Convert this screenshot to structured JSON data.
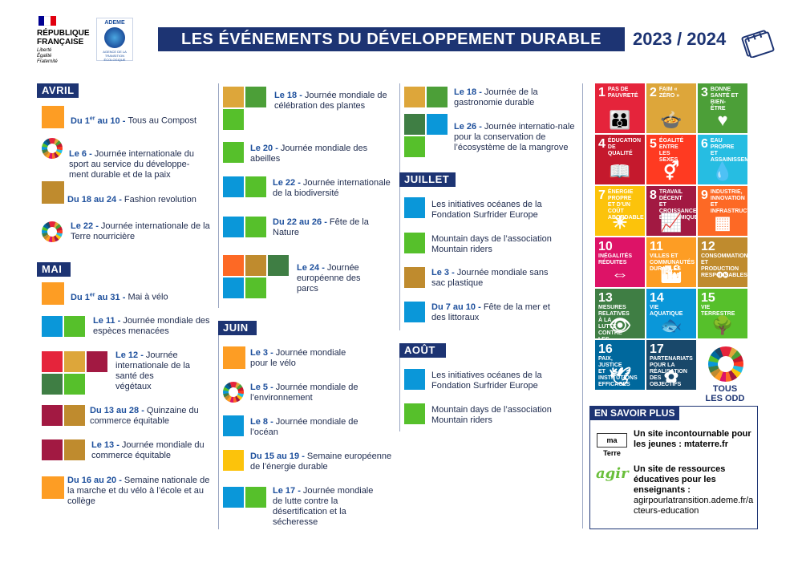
{
  "header": {
    "republique": [
      "RÉPUBLIQUE",
      "FRANÇAISE"
    ],
    "motto": [
      "Liberté",
      "Égalité",
      "Fraternité"
    ],
    "ademe_label": "ADEME",
    "ademe_sub": "AGENCE DE LA TRANSITION ÉCOLOGIQUE",
    "title": "LES ÉVÉNEMENTS DU DÉVELOPPEMENT DURABLE",
    "year": "2023 / 2024",
    "flag_colors": [
      "#000091",
      "#ffffff",
      "#e1000f"
    ]
  },
  "months": {
    "avril": "AVRIL",
    "mai": "MAI",
    "juin": "JUIN",
    "juillet": "JUILLET",
    "aout": "AOÛT"
  },
  "events": {
    "avril": [
      {
        "date": "Du 1",
        "sup": "er",
        "date2": " au 10",
        "sep": " - ",
        "text": "Tous au Compost"
      },
      {
        "date": "Le 6",
        "sep": " - ",
        "text": "Journée internationale du sport au service du développe-ment durable et de la paix"
      },
      {
        "date": "Du 18 au 24",
        "sep": " - ",
        "text": "Fashion revolution"
      },
      {
        "date": "Le 22",
        "sep": " - ",
        "text": "Journée internationale de la Terre nourricière"
      }
    ],
    "mai": [
      {
        "date": "Du 1",
        "sup": "er",
        "date2": " au 31",
        "sep": " - ",
        "text": "Mai à vélo"
      },
      {
        "date": "Le 11",
        "sep": " - ",
        "text": "Journée mondiale des espèces menacées"
      },
      {
        "date": "Le 12",
        "sep": " - ",
        "text": "Journée internationale de la santé des végétaux"
      },
      {
        "date": "Du 13 au 28",
        "sep": " - ",
        "text": "Quinzaine du commerce équitable"
      },
      {
        "date": "Le 13",
        "sep": " - ",
        "text": "Journée mondiale du commerce équitable"
      },
      {
        "date": "Du 16 au 20",
        "sep": " - ",
        "text": "Semaine nationale de la marche et du vélo à l’école et au collège"
      }
    ],
    "mai2": [
      {
        "date": "Le 18",
        "sep": " - ",
        "text": "Journée mondiale de célébration des plantes"
      },
      {
        "date": "Le 20",
        "sep": " - ",
        "text": "Journée mondiale des abeilles"
      },
      {
        "date": "Le 22",
        "sep": " - ",
        "text": "Journée internationale de la biodiversité"
      },
      {
        "date": "Du 22 au 26",
        "sep": " - ",
        "text": "Fête de la Nature"
      },
      {
        "date": "Le 24",
        "sep": " - ",
        "text": "Journée européenne des parcs"
      }
    ],
    "juin": [
      {
        "date": "Le 3",
        "sep": " - ",
        "text": "Journée mondiale pour le vélo"
      },
      {
        "date": "Le 5",
        "sep": " - ",
        "text": "Journée mondiale de l’environnement"
      },
      {
        "date": "Le 8",
        "sep": " - ",
        "text": "Journée mondiale de l’océan"
      },
      {
        "date": "Du 15 au 19",
        "sep": " - ",
        "text": "Semaine européenne de l’énergie durable"
      },
      {
        "date": "Le 17",
        "sep": " - ",
        "text": "Journée mondiale de lutte contre la désertification et la sécheresse"
      }
    ],
    "juin2": [
      {
        "date": "Le 18",
        "sep": " - ",
        "text": "Journée de la gastronomie durable"
      },
      {
        "date": "Le 26",
        "sep": " - ",
        "text": "Journée internatio-nale pour la conservation de l’écosystème de la mangrove"
      }
    ],
    "juillet": [
      {
        "text": "Les initiatives océanes de la Fondation Surfrider Europe"
      },
      {
        "text": "Mountain days de l’association Mountain riders"
      },
      {
        "date": "Le 3",
        "sep": " - ",
        "text": "Journée mondiale sans sac plastique"
      },
      {
        "date": "Du 7 au 10",
        "sep": " - ",
        "text": "Fête de la mer et des littoraux"
      }
    ],
    "aout": [
      {
        "text": "Les initiatives océanes de la Fondation Surfrider Europe"
      },
      {
        "text": "Mountain days de l’association Mountain riders"
      }
    ]
  },
  "sdgs": [
    {
      "n": "1",
      "label": "PAS DE PAUVRETÉ",
      "color": "#e5243b",
      "glyph": "👪"
    },
    {
      "n": "2",
      "label": "FAIM « ZÉRO »",
      "color": "#dda63a",
      "glyph": "🍲"
    },
    {
      "n": "3",
      "label": "BONNE SANTÉ ET BIEN-ÊTRE",
      "color": "#4c9f38",
      "glyph": "♥"
    },
    {
      "n": "4",
      "label": "ÉDUCATION DE QUALITÉ",
      "color": "#c5192d",
      "glyph": "📖"
    },
    {
      "n": "5",
      "label": "ÉGALITÉ ENTRE LES SEXES",
      "color": "#ff3a21",
      "glyph": "⚥"
    },
    {
      "n": "6",
      "label": "EAU PROPRE ET ASSAINISSEMENT",
      "color": "#26bde2",
      "glyph": "💧"
    },
    {
      "n": "7",
      "label": "ÉNERGIE PROPRE ET D’UN COÛT ABORDABLE",
      "color": "#fcc30b",
      "glyph": "☀"
    },
    {
      "n": "8",
      "label": "TRAVAIL DÉCENT ET CROISSANCE ÉCONOMIQUE",
      "color": "#a21942",
      "glyph": "📈"
    },
    {
      "n": "9",
      "label": "INDUSTRIE, INNOVATION ET INFRASTRUCTURE",
      "color": "#fd6925",
      "glyph": "▦"
    },
    {
      "n": "10",
      "label": "INÉGALITÉS RÉDUITES",
      "color": "#dd1367",
      "glyph": "⇔"
    },
    {
      "n": "11",
      "label": "VILLES ET COMMUNAUTÉS DURABLES",
      "color": "#fd9d24",
      "glyph": "🏙"
    },
    {
      "n": "12",
      "label": "CONSOMMATION ET PRODUCTION RESPONSABLES",
      "color": "#bf8b2e",
      "glyph": "∞"
    },
    {
      "n": "13",
      "label": "MESURES RELATIVES À LA LUTTE CONTRE LES CHANGEMENTS CLIMATIQUES",
      "color": "#3f7e44",
      "glyph": "👁"
    },
    {
      "n": "14",
      "label": "VIE AQUATIQUE",
      "color": "#0a97d9",
      "glyph": "🐟"
    },
    {
      "n": "15",
      "label": "VIE TERRESTRE",
      "color": "#56c02b",
      "glyph": "🌳"
    },
    {
      "n": "16",
      "label": "PAIX, JUSTICE ET INSTITUTIONS EFFICACES",
      "color": "#00689d",
      "glyph": "🕊"
    },
    {
      "n": "17",
      "label": "PARTENARIATS POUR LA RÉALISATION DES OBJECTIFS",
      "color": "#19486a",
      "glyph": "✿"
    }
  ],
  "tous_odd": [
    "TOUS",
    "LES ODD"
  ],
  "savoir": {
    "heading": "EN SAVOIR PLUS",
    "mt_logo": "ma Terre",
    "mt_text": "Un site incontournable pour les jeunes :",
    "mt_url": " mtaterre.fr",
    "agir_logo": "agir",
    "agir_text": "Un site de ressources éducatives pour les enseignants :",
    "agir_url": "agirpourlatransition.ademe.fr/acteurs-education"
  }
}
